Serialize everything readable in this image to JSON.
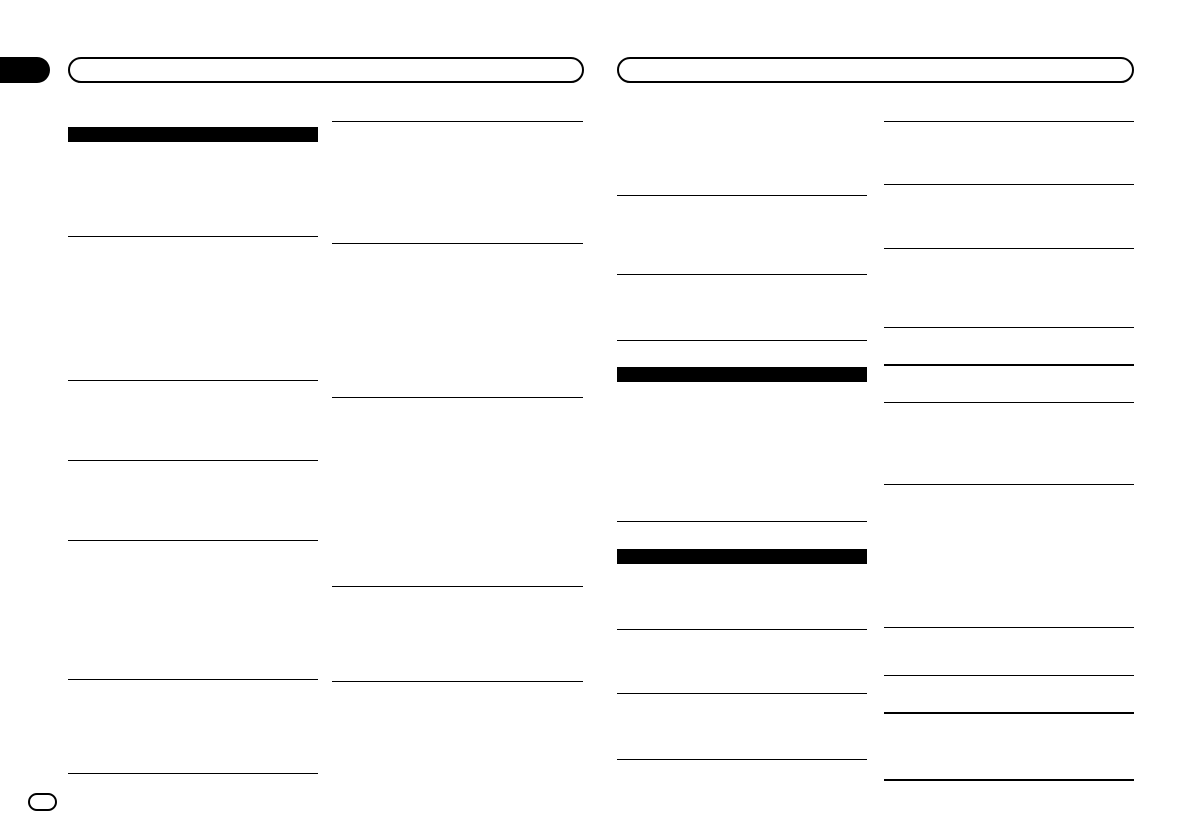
{
  "document": {
    "header_left": "",
    "header_right": "",
    "section_tab": "",
    "page_badge": ""
  }
}
